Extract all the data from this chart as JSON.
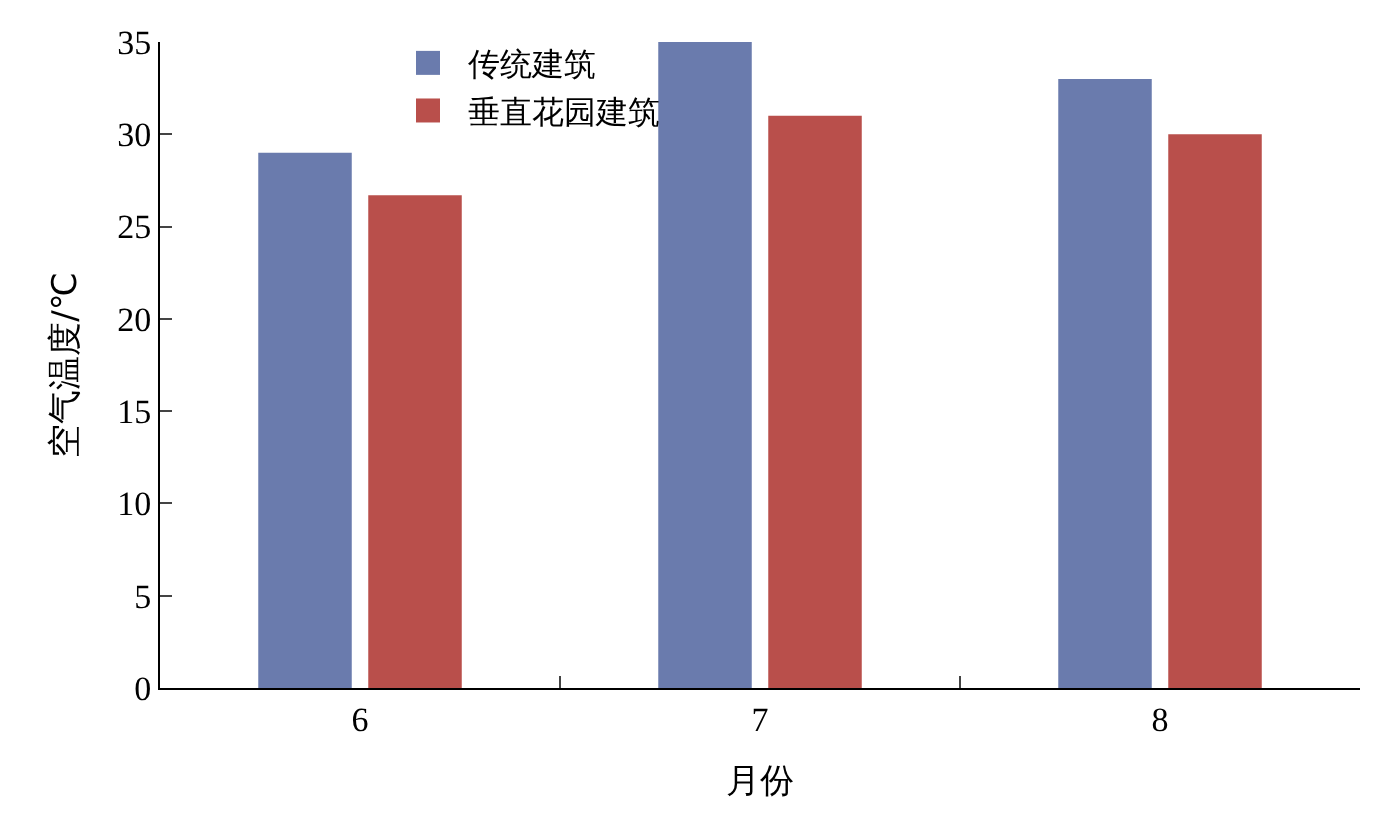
{
  "chart_data": {
    "type": "bar",
    "xlabel": "月份",
    "ylabel": "空气温度/℃",
    "categories": [
      "6",
      "7",
      "8"
    ],
    "series": [
      {
        "name": "传统建筑",
        "color": "#6a7bad",
        "values": [
          29,
          35,
          33
        ]
      },
      {
        "name": "垂直花园建筑",
        "color": "#b94f4b",
        "values": [
          26.7,
          31,
          30
        ]
      }
    ],
    "ylim": [
      0,
      35
    ],
    "yticks": [
      0,
      5,
      10,
      15,
      20,
      25,
      30,
      35
    ],
    "legend": "top left"
  }
}
